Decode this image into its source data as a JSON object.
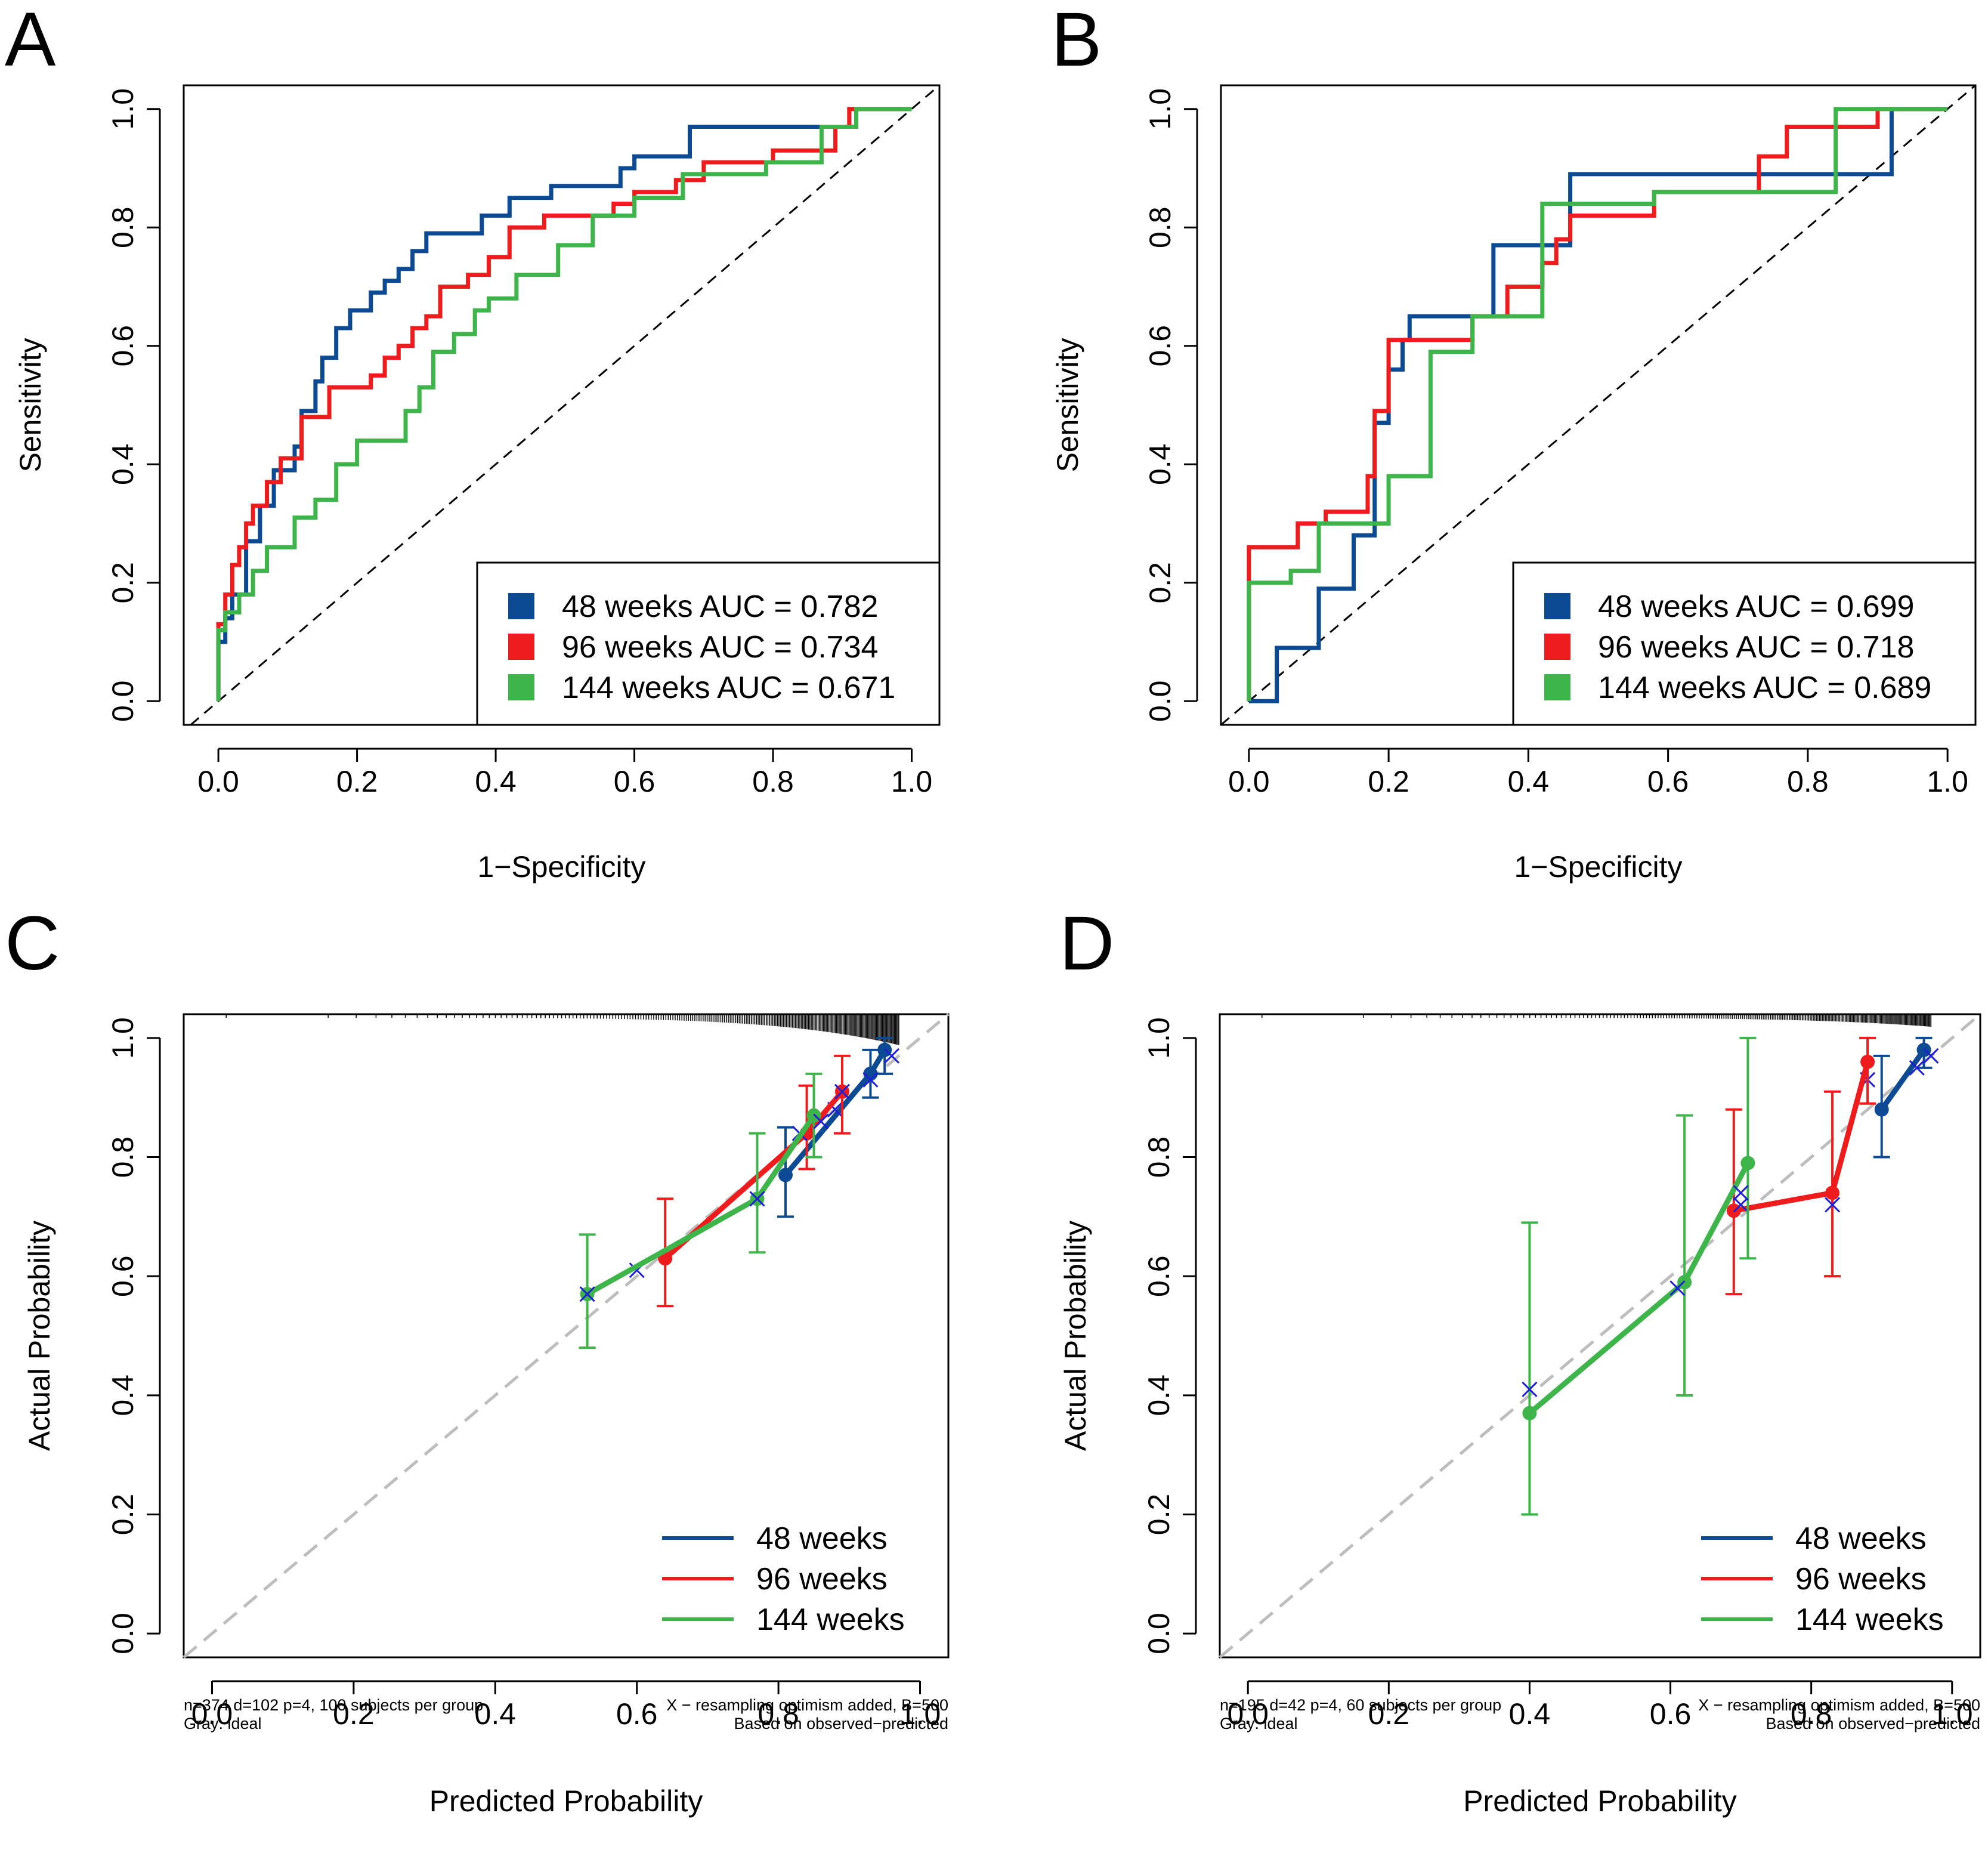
{
  "colors": {
    "blue": "#0D4A94",
    "red": "#EE1C1C",
    "green": "#3DB54A",
    "black": "#000000",
    "gray": "#BDBDBD",
    "xmark": "#1F1FD6"
  },
  "chart_data": [
    {
      "id": "A",
      "panel_label": "A",
      "type": "line",
      "xlabel": "1−Specificity",
      "ylabel": "Sensitivity",
      "xlim": [
        -0.05,
        1.04
      ],
      "ylim": [
        -0.04,
        1.04
      ],
      "xticks": [
        "0.0",
        "0.2",
        "0.4",
        "0.6",
        "0.8",
        "1.0"
      ],
      "yticks": [
        "0.0",
        "0.2",
        "0.4",
        "0.6",
        "0.8",
        "1.0"
      ],
      "reference_line": "diagonal-dashed",
      "legend": {
        "position": "bottom-right",
        "entries": [
          "48 weeks AUC = 0.782",
          "96 weeks AUC = 0.734",
          "144 weeks AUC = 0.671"
        ]
      },
      "series": [
        {
          "color": "blue",
          "x": [
            0,
            0,
            0.01,
            0.01,
            0.02,
            0.02,
            0.04,
            0.04,
            0.06,
            0.06,
            0.08,
            0.08,
            0.11,
            0.11,
            0.12,
            0.12,
            0.14,
            0.14,
            0.15,
            0.15,
            0.17,
            0.17,
            0.19,
            0.19,
            0.22,
            0.22,
            0.24,
            0.24,
            0.26,
            0.26,
            0.28,
            0.28,
            0.3,
            0.3,
            0.33,
            0.33,
            0.38,
            0.38,
            0.42,
            0.42,
            0.48,
            0.48,
            0.58,
            0.58,
            0.6,
            0.6,
            0.68,
            0.68,
            0.91,
            0.91,
            1.0
          ],
          "y": [
            0,
            0.1,
            0.1,
            0.14,
            0.14,
            0.18,
            0.18,
            0.27,
            0.27,
            0.33,
            0.33,
            0.39,
            0.39,
            0.43,
            0.43,
            0.49,
            0.49,
            0.54,
            0.54,
            0.58,
            0.58,
            0.63,
            0.63,
            0.66,
            0.66,
            0.69,
            0.69,
            0.71,
            0.71,
            0.73,
            0.73,
            0.76,
            0.76,
            0.79,
            0.79,
            0.79,
            0.79,
            0.82,
            0.82,
            0.85,
            0.85,
            0.87,
            0.87,
            0.9,
            0.9,
            0.92,
            0.92,
            0.97,
            0.97,
            1.0,
            1.0
          ]
        },
        {
          "color": "red",
          "x": [
            0,
            0,
            0.01,
            0.01,
            0.02,
            0.02,
            0.03,
            0.03,
            0.04,
            0.04,
            0.05,
            0.05,
            0.07,
            0.07,
            0.09,
            0.09,
            0.12,
            0.12,
            0.16,
            0.16,
            0.22,
            0.22,
            0.24,
            0.24,
            0.26,
            0.26,
            0.28,
            0.28,
            0.3,
            0.3,
            0.32,
            0.32,
            0.36,
            0.36,
            0.39,
            0.39,
            0.42,
            0.42,
            0.47,
            0.47,
            0.57,
            0.57,
            0.6,
            0.6,
            0.66,
            0.66,
            0.7,
            0.7,
            0.8,
            0.8,
            0.89,
            0.89,
            0.91,
            0.91,
            1.0
          ],
          "y": [
            0,
            0.13,
            0.13,
            0.18,
            0.18,
            0.23,
            0.23,
            0.26,
            0.26,
            0.3,
            0.3,
            0.33,
            0.33,
            0.37,
            0.37,
            0.41,
            0.41,
            0.48,
            0.48,
            0.53,
            0.53,
            0.55,
            0.55,
            0.58,
            0.58,
            0.6,
            0.6,
            0.63,
            0.63,
            0.65,
            0.65,
            0.7,
            0.7,
            0.72,
            0.72,
            0.75,
            0.75,
            0.8,
            0.8,
            0.82,
            0.82,
            0.84,
            0.84,
            0.86,
            0.86,
            0.88,
            0.88,
            0.91,
            0.91,
            0.93,
            0.93,
            0.97,
            0.97,
            1.0,
            1.0
          ]
        },
        {
          "color": "green",
          "x": [
            0,
            0,
            0.01,
            0.01,
            0.03,
            0.03,
            0.05,
            0.05,
            0.07,
            0.07,
            0.11,
            0.11,
            0.14,
            0.14,
            0.17,
            0.17,
            0.2,
            0.2,
            0.27,
            0.27,
            0.29,
            0.29,
            0.31,
            0.31,
            0.34,
            0.34,
            0.37,
            0.37,
            0.39,
            0.39,
            0.43,
            0.43,
            0.49,
            0.49,
            0.54,
            0.54,
            0.6,
            0.6,
            0.67,
            0.67,
            0.79,
            0.79,
            0.87,
            0.87,
            0.92,
            0.92,
            1.0
          ],
          "y": [
            0,
            0.12,
            0.12,
            0.15,
            0.15,
            0.18,
            0.18,
            0.22,
            0.22,
            0.26,
            0.26,
            0.31,
            0.31,
            0.34,
            0.34,
            0.4,
            0.4,
            0.44,
            0.44,
            0.49,
            0.49,
            0.53,
            0.53,
            0.59,
            0.59,
            0.62,
            0.62,
            0.66,
            0.66,
            0.68,
            0.68,
            0.72,
            0.72,
            0.77,
            0.77,
            0.82,
            0.82,
            0.85,
            0.85,
            0.89,
            0.89,
            0.91,
            0.91,
            0.97,
            0.97,
            1.0,
            1.0
          ]
        }
      ]
    },
    {
      "id": "B",
      "panel_label": "B",
      "type": "line",
      "xlabel": "1−Specificity",
      "ylabel": "Sensitivity",
      "xlim": [
        -0.04,
        1.04
      ],
      "ylim": [
        -0.04,
        1.04
      ],
      "xticks": [
        "0.0",
        "0.2",
        "0.4",
        "0.6",
        "0.8",
        "1.0"
      ],
      "yticks": [
        "0.0",
        "0.2",
        "0.4",
        "0.6",
        "0.8",
        "1.0"
      ],
      "reference_line": "diagonal-dashed",
      "legend": {
        "position": "bottom-right",
        "entries": [
          "48 weeks AUC = 0.699",
          "96 weeks AUC = 0.718",
          "144 weeks AUC = 0.689"
        ]
      },
      "series": [
        {
          "color": "blue",
          "x": [
            0,
            0.04,
            0.04,
            0.1,
            0.1,
            0.15,
            0.15,
            0.18,
            0.18,
            0.2,
            0.2,
            0.22,
            0.22,
            0.23,
            0.23,
            0.35,
            0.35,
            0.46,
            0.46,
            0.92,
            0.92,
            1.0
          ],
          "y": [
            0,
            0,
            0.09,
            0.09,
            0.19,
            0.19,
            0.28,
            0.28,
            0.47,
            0.47,
            0.56,
            0.56,
            0.61,
            0.61,
            0.65,
            0.65,
            0.77,
            0.77,
            0.89,
            0.89,
            1.0,
            1.0
          ]
        },
        {
          "color": "red",
          "x": [
            0,
            0,
            0.07,
            0.07,
            0.11,
            0.11,
            0.17,
            0.17,
            0.18,
            0.18,
            0.2,
            0.2,
            0.32,
            0.32,
            0.37,
            0.37,
            0.42,
            0.42,
            0.44,
            0.44,
            0.46,
            0.46,
            0.58,
            0.58,
            0.73,
            0.73,
            0.77,
            0.77,
            0.9,
            0.9,
            1.0
          ],
          "y": [
            0,
            0.26,
            0.26,
            0.3,
            0.3,
            0.32,
            0.32,
            0.38,
            0.38,
            0.49,
            0.49,
            0.61,
            0.61,
            0.65,
            0.65,
            0.7,
            0.7,
            0.74,
            0.74,
            0.78,
            0.78,
            0.82,
            0.82,
            0.86,
            0.86,
            0.92,
            0.92,
            0.97,
            0.97,
            1.0,
            1.0
          ]
        },
        {
          "color": "green",
          "x": [
            0,
            0,
            0.06,
            0.06,
            0.1,
            0.1,
            0.2,
            0.2,
            0.26,
            0.26,
            0.32,
            0.32,
            0.42,
            0.42,
            0.58,
            0.58,
            0.84,
            0.84,
            1.0
          ],
          "y": [
            0,
            0.2,
            0.2,
            0.22,
            0.22,
            0.3,
            0.3,
            0.38,
            0.38,
            0.59,
            0.59,
            0.65,
            0.65,
            0.84,
            0.84,
            0.86,
            0.86,
            1.0,
            1.0
          ]
        }
      ]
    },
    {
      "id": "C",
      "panel_label": "C",
      "type": "line",
      "xlabel": "Predicted Probability",
      "ylabel": "Actual Probability",
      "xlim": [
        -0.04,
        1.04
      ],
      "ylim": [
        -0.04,
        1.04
      ],
      "xticks": [
        "0.0",
        "0.2",
        "0.4",
        "0.6",
        "0.8",
        "1.0"
      ],
      "yticks": [
        "0.0",
        "0.2",
        "0.4",
        "0.6",
        "0.8",
        "1.0"
      ],
      "reference_line": "ideal-gray-dashed",
      "legend": {
        "position": "bottom-right",
        "entries": [
          "48 weeks",
          "96 weeks",
          "144 weeks"
        ]
      },
      "footnote": {
        "left1": "n=374 d=102 p=4, 100 subjects per group",
        "left2": "Gray: ideal",
        "right1": "X − resampling optimism added, B=500",
        "right2": "Based on observed−predicted"
      },
      "series": [
        {
          "color": "blue",
          "points": [
            [
              0.81,
              0.77,
              0.7,
              0.85
            ],
            [
              0.93,
              0.94,
              0.9,
              0.98
            ],
            [
              0.95,
              0.98,
              0.94,
              1.0
            ]
          ],
          "xmarks": [
            [
              0.88,
              0.88
            ],
            [
              0.93,
              0.93
            ],
            [
              0.96,
              0.97
            ]
          ]
        },
        {
          "color": "red",
          "points": [
            [
              0.64,
              0.63,
              0.55,
              0.73
            ],
            [
              0.84,
              0.84,
              0.78,
              0.92
            ],
            [
              0.89,
              0.91,
              0.84,
              0.97
            ]
          ],
          "xmarks": [
            [
              0.6,
              0.61
            ],
            [
              0.83,
              0.84
            ],
            [
              0.89,
              0.91
            ]
          ]
        },
        {
          "color": "green",
          "points": [
            [
              0.53,
              0.57,
              0.48,
              0.67
            ],
            [
              0.77,
              0.73,
              0.64,
              0.84
            ],
            [
              0.85,
              0.87,
              0.8,
              0.94
            ]
          ],
          "xmarks": [
            [
              0.53,
              0.57
            ],
            [
              0.77,
              0.73
            ],
            [
              0.86,
              0.86
            ]
          ]
        }
      ]
    },
    {
      "id": "D",
      "panel_label": "D",
      "type": "line",
      "xlabel": "Predicted Probability",
      "ylabel": "Actual Probability",
      "xlim": [
        -0.04,
        1.04
      ],
      "ylim": [
        -0.04,
        1.04
      ],
      "xticks": [
        "0.0",
        "0.2",
        "0.4",
        "0.6",
        "0.8",
        "1.0"
      ],
      "yticks": [
        "0.0",
        "0.2",
        "0.4",
        "0.6",
        "0.8",
        "1.0"
      ],
      "reference_line": "ideal-gray-dashed",
      "legend": {
        "position": "bottom-right",
        "entries": [
          "48 weeks",
          "96 weeks",
          "144 weeks"
        ]
      },
      "footnote": {
        "left1": "n=195 d=42 p=4, 60 subjects per group",
        "left2": "Gray: ideal",
        "right1": "X − resampling optimism added, B=500",
        "right2": "Based on observed−predicted"
      },
      "series": [
        {
          "color": "blue",
          "points": [
            [
              0.9,
              0.88,
              0.8,
              0.97
            ],
            [
              0.96,
              0.98,
              0.95,
              1.0
            ]
          ],
          "xmarks": [
            [
              0.88,
              0.93
            ],
            [
              0.95,
              0.95
            ],
            [
              0.97,
              0.97
            ]
          ]
        },
        {
          "color": "red",
          "points": [
            [
              0.69,
              0.71,
              0.57,
              0.88
            ],
            [
              0.83,
              0.74,
              0.6,
              0.91
            ],
            [
              0.88,
              0.96,
              0.89,
              1.0
            ]
          ],
          "xmarks": [
            [
              0.7,
              0.72
            ],
            [
              0.83,
              0.72
            ]
          ]
        },
        {
          "color": "green",
          "points": [
            [
              0.4,
              0.37,
              0.2,
              0.69
            ],
            [
              0.62,
              0.59,
              0.4,
              0.87
            ],
            [
              0.71,
              0.79,
              0.63,
              1.0
            ]
          ],
          "xmarks": [
            [
              0.4,
              0.41
            ],
            [
              0.61,
              0.58
            ],
            [
              0.7,
              0.74
            ]
          ]
        }
      ]
    }
  ]
}
